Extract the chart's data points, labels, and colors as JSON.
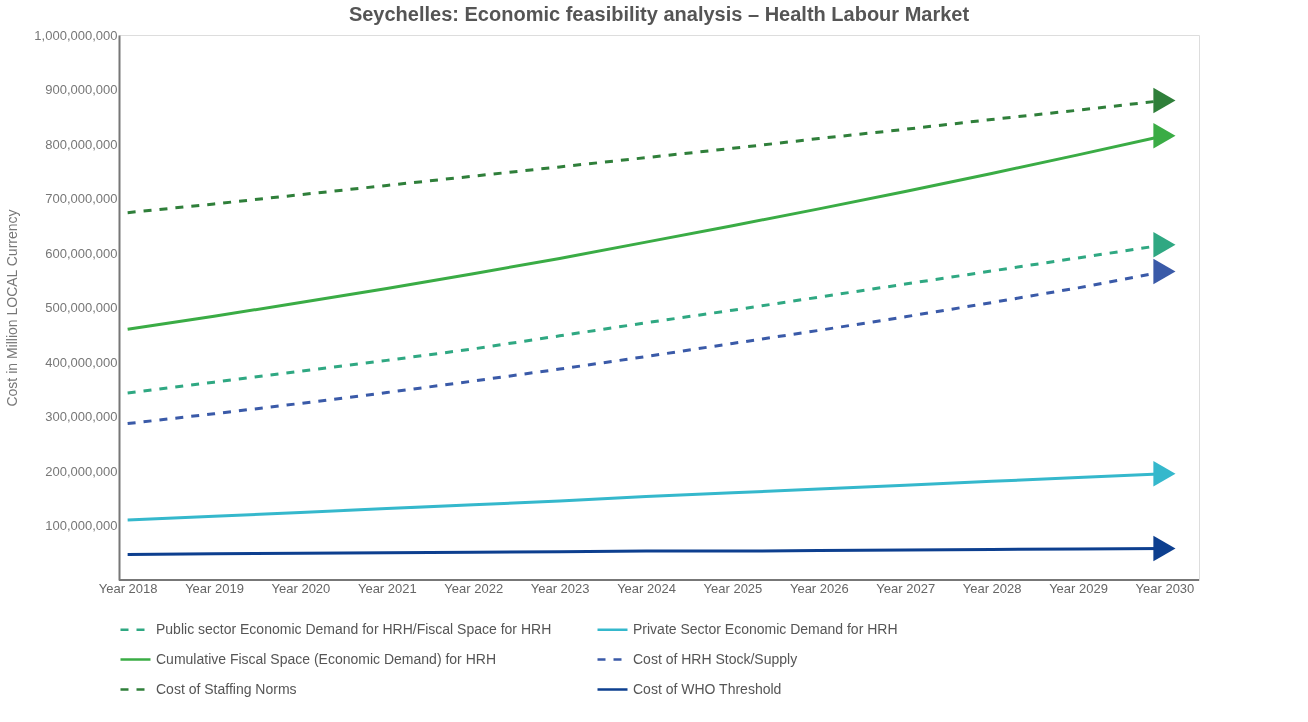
{
  "chart_data": {
    "type": "line",
    "title": "Seychelles: Economic feasibility analysis – Health Labour Market",
    "ylabel": "Cost in Million LOCAL Currency",
    "categories": [
      "Year 2018",
      "Year 2019",
      "Year 2020",
      "Year 2021",
      "Year 2022",
      "Year 2023",
      "Year 2024",
      "Year 2025",
      "Year 2026",
      "Year 2027",
      "Year 2028",
      "Year 2029",
      "Year 2030"
    ],
    "series": [
      {
        "name": "Public sector Economic Demand for HRH/Fiscal Space for HRH",
        "color": "#2fa882",
        "line_style": "dashed",
        "values": [
          343000000,
          363000000,
          383000000,
          403000000,
          424000000,
          448000000,
          472000000,
          495000000,
          519000000,
          543000000,
          567000000,
          591000000,
          615000000
        ]
      },
      {
        "name": "Private Sector Economic Demand for HRH",
        "color": "#35b8cc",
        "line_style": "solid",
        "values": [
          110000000,
          117000000,
          124000000,
          131000000,
          138000000,
          145000000,
          153000000,
          160000000,
          167000000,
          174000000,
          181000000,
          188000000,
          195000000
        ]
      },
      {
        "name": "Cumulative Fiscal Space (Economic Demand) for HRH",
        "color": "#3aac45",
        "line_style": "solid",
        "values": [
          460000000,
          484000000,
          509000000,
          535000000,
          562000000,
          590000000,
          620000000,
          650000000,
          681000000,
          713000000,
          746000000,
          780000000,
          815000000
        ]
      },
      {
        "name": "Cost of HRH Stock/Supply",
        "color": "#3a5aa8",
        "line_style": "dashed",
        "values": [
          287000000,
          305000000,
          324000000,
          344000000,
          365000000,
          387000000,
          410000000,
          434000000,
          458000000,
          483000000,
          509000000,
          536000000,
          566000000
        ]
      },
      {
        "name": "Cost of Staffing Norms",
        "color": "#2f7f3a",
        "line_style": "dashed",
        "values": [
          674000000,
          690000000,
          707000000,
          724000000,
          741000000,
          758000000,
          775000000,
          792000000,
          810000000,
          827000000,
          845000000,
          862000000,
          880000000
        ]
      },
      {
        "name": "Cost of WHO Threshold",
        "color": "#0d3f8f",
        "line_style": "solid",
        "values": [
          47000000,
          48000000,
          49000000,
          50000000,
          51000000,
          52000000,
          53000000,
          53000000,
          54000000,
          55000000,
          56000000,
          57000000,
          58000000
        ]
      }
    ],
    "ylim": [
      0,
      1000000000
    ],
    "yticks": [
      {
        "value": 100000000,
        "label": "100,000,000"
      },
      {
        "value": 200000000,
        "label": "200,000,000"
      },
      {
        "value": 300000000,
        "label": "300,000,000"
      },
      {
        "value": 400000000,
        "label": "400,000,000"
      },
      {
        "value": 500000000,
        "label": "500,000,000"
      },
      {
        "value": 600000000,
        "label": "600,000,000"
      },
      {
        "value": 700000000,
        "label": "700,000,000"
      },
      {
        "value": 800000000,
        "label": "800,000,000"
      },
      {
        "value": 900000000,
        "label": "900,000,000"
      },
      {
        "value": 1000000000,
        "label": "1,000,000,000"
      }
    ],
    "grid": false,
    "legend": "bottom",
    "marker": "none"
  }
}
